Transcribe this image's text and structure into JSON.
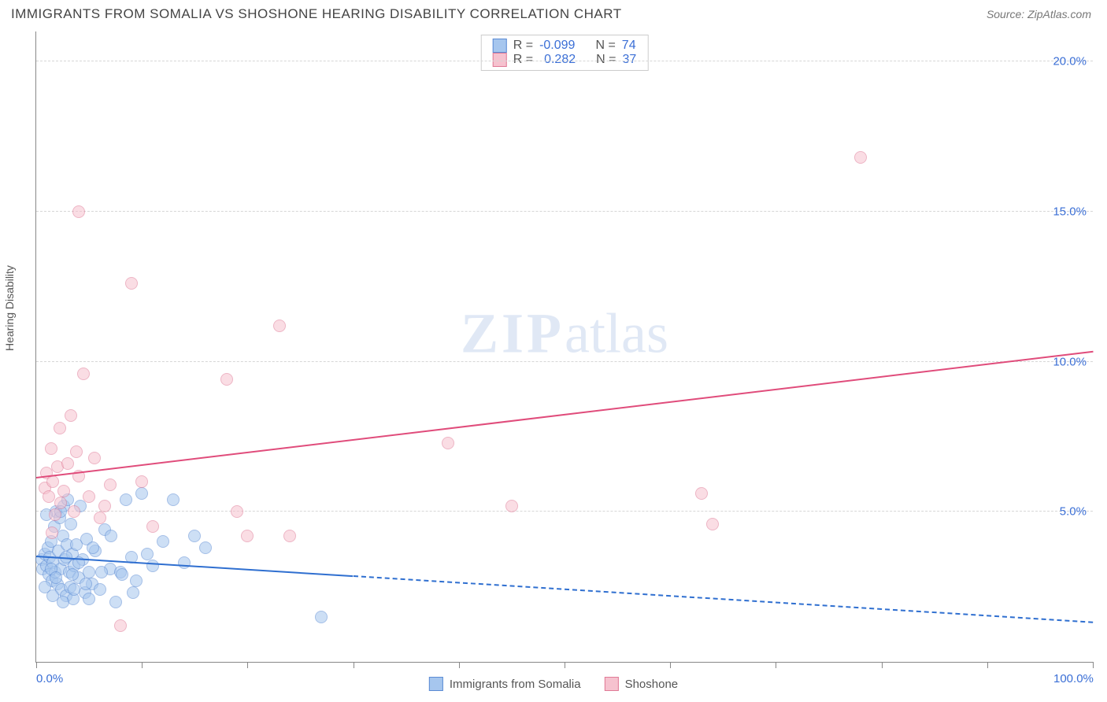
{
  "header": {
    "title": "IMMIGRANTS FROM SOMALIA VS SHOSHONE HEARING DISABILITY CORRELATION CHART",
    "source": "Source: ZipAtlas.com"
  },
  "chart": {
    "type": "scatter",
    "ylabel": "Hearing Disability",
    "xlim": [
      0,
      100
    ],
    "ylim": [
      0,
      21
    ],
    "xticks": [
      0,
      10,
      20,
      30,
      40,
      50,
      60,
      70,
      80,
      90,
      100
    ],
    "xtick_labels": {
      "0": "0.0%",
      "100": "100.0%"
    },
    "yticks": [
      5,
      10,
      15,
      20
    ],
    "ytick_labels": {
      "5": "5.0%",
      "10": "10.0%",
      "15": "15.0%",
      "20": "20.0%"
    },
    "grid_color": "#d6d6d6",
    "background_color": "#ffffff",
    "axis_color": "#888888",
    "tick_label_color": "#3b6fd6",
    "marker_radius": 8,
    "marker_border_width": 1.2,
    "watermark": "ZIPatlas",
    "series": [
      {
        "name": "Immigrants from Somalia",
        "fill_color": "#a6c6ee",
        "border_color": "#5b8bd4",
        "fill_opacity": 0.55,
        "R": "-0.099",
        "N": "74",
        "trend": {
          "x1": 0,
          "y1": 3.5,
          "x2": 100,
          "y2": 1.3,
          "solid_until_x": 30,
          "color": "#2f6fd0",
          "width": 2
        },
        "points": [
          [
            0.5,
            3.4
          ],
          [
            0.6,
            3.1
          ],
          [
            0.8,
            3.6
          ],
          [
            1.0,
            3.2
          ],
          [
            1.1,
            3.8
          ],
          [
            1.2,
            2.9
          ],
          [
            1.3,
            3.5
          ],
          [
            1.4,
            4.0
          ],
          [
            1.5,
            2.7
          ],
          [
            1.6,
            3.3
          ],
          [
            1.7,
            4.5
          ],
          [
            1.8,
            3.0
          ],
          [
            1.9,
            5.0
          ],
          [
            2.0,
            2.6
          ],
          [
            2.1,
            3.7
          ],
          [
            2.2,
            4.8
          ],
          [
            2.3,
            3.1
          ],
          [
            2.4,
            2.4
          ],
          [
            2.5,
            4.2
          ],
          [
            2.6,
            5.2
          ],
          [
            2.7,
            3.4
          ],
          [
            2.8,
            2.2
          ],
          [
            2.9,
            3.9
          ],
          [
            3.0,
            5.4
          ],
          [
            3.1,
            3.0
          ],
          [
            3.2,
            2.5
          ],
          [
            3.3,
            4.6
          ],
          [
            3.4,
            3.6
          ],
          [
            3.5,
            2.1
          ],
          [
            3.6,
            3.2
          ],
          [
            3.8,
            3.9
          ],
          [
            4.0,
            2.8
          ],
          [
            4.2,
            5.2
          ],
          [
            4.4,
            3.4
          ],
          [
            4.6,
            2.3
          ],
          [
            4.8,
            4.1
          ],
          [
            5.0,
            3.0
          ],
          [
            5.3,
            2.6
          ],
          [
            5.6,
            3.7
          ],
          [
            6.0,
            2.4
          ],
          [
            6.5,
            4.4
          ],
          [
            7.0,
            3.1
          ],
          [
            7.5,
            2.0
          ],
          [
            8.0,
            3.0
          ],
          [
            8.5,
            5.4
          ],
          [
            9.0,
            3.5
          ],
          [
            9.5,
            2.7
          ],
          [
            10.0,
            5.6
          ],
          [
            11.0,
            3.2
          ],
          [
            12.0,
            4.0
          ],
          [
            13.0,
            5.4
          ],
          [
            14.0,
            3.3
          ],
          [
            15.0,
            4.2
          ],
          [
            16.0,
            3.8
          ],
          [
            27.0,
            1.5
          ],
          [
            1.0,
            4.9
          ],
          [
            1.4,
            3.1
          ],
          [
            1.9,
            2.8
          ],
          [
            2.3,
            5.0
          ],
          [
            2.8,
            3.5
          ],
          [
            3.4,
            2.9
          ],
          [
            4.0,
            3.3
          ],
          [
            4.7,
            2.6
          ],
          [
            5.4,
            3.8
          ],
          [
            6.2,
            3.0
          ],
          [
            7.1,
            4.2
          ],
          [
            8.1,
            2.9
          ],
          [
            9.2,
            2.3
          ],
          [
            10.5,
            3.6
          ],
          [
            0.8,
            2.5
          ],
          [
            1.6,
            2.2
          ],
          [
            2.5,
            2.0
          ],
          [
            3.6,
            2.4
          ],
          [
            5.0,
            2.1
          ]
        ]
      },
      {
        "name": "Shoshone",
        "fill_color": "#f6c2cf",
        "border_color": "#e07a96",
        "fill_opacity": 0.55,
        "R": "0.282",
        "N": "37",
        "trend": {
          "x1": 0,
          "y1": 6.1,
          "x2": 100,
          "y2": 10.3,
          "solid_until_x": 100,
          "color": "#e04c7b",
          "width": 2
        },
        "points": [
          [
            0.8,
            5.8
          ],
          [
            1.0,
            6.3
          ],
          [
            1.2,
            5.5
          ],
          [
            1.4,
            7.1
          ],
          [
            1.6,
            6.0
          ],
          [
            1.8,
            4.9
          ],
          [
            2.0,
            6.5
          ],
          [
            2.3,
            5.3
          ],
          [
            2.6,
            5.7
          ],
          [
            3.0,
            6.6
          ],
          [
            3.3,
            8.2
          ],
          [
            3.6,
            5.0
          ],
          [
            4.0,
            6.2
          ],
          [
            4.5,
            9.6
          ],
          [
            5.0,
            5.5
          ],
          [
            5.5,
            6.8
          ],
          [
            6.0,
            4.8
          ],
          [
            7.0,
            5.9
          ],
          [
            8.0,
            1.2
          ],
          [
            9.0,
            12.6
          ],
          [
            10.0,
            6.0
          ],
          [
            11.0,
            4.5
          ],
          [
            4.0,
            15.0
          ],
          [
            18.0,
            9.4
          ],
          [
            19.0,
            5.0
          ],
          [
            20.0,
            4.2
          ],
          [
            23.0,
            11.2
          ],
          [
            24.0,
            4.2
          ],
          [
            39.0,
            7.3
          ],
          [
            45.0,
            5.2
          ],
          [
            63.0,
            5.6
          ],
          [
            64.0,
            4.6
          ],
          [
            78.0,
            16.8
          ],
          [
            2.2,
            7.8
          ],
          [
            3.8,
            7.0
          ],
          [
            6.5,
            5.2
          ],
          [
            1.5,
            4.3
          ]
        ]
      }
    ],
    "legend_bottom": [
      {
        "swatch_fill": "#a6c6ee",
        "swatch_border": "#5b8bd4",
        "label": "Immigrants from Somalia"
      },
      {
        "swatch_fill": "#f6c2cf",
        "swatch_border": "#e07a96",
        "label": "Shoshone"
      }
    ]
  }
}
